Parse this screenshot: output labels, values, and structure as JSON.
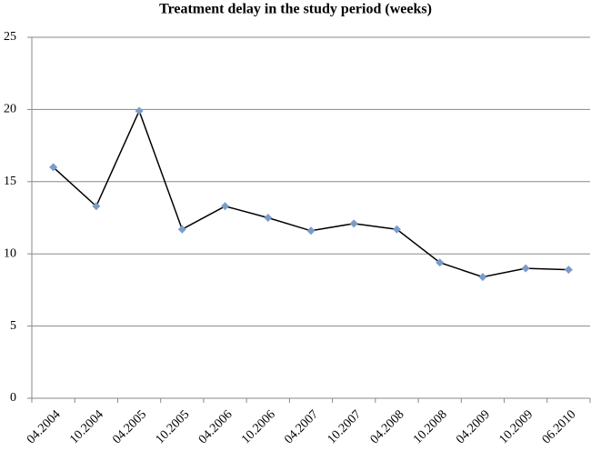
{
  "chart_data": {
    "type": "line",
    "title": "Treatment delay in the study period (weeks)",
    "categories": [
      "04.2004",
      "10.2004",
      "04.2005",
      "10.2005",
      "04.2006",
      "10.2006",
      "04.2007",
      "10.2007",
      "04.2008",
      "10.2008",
      "04.2009",
      "10.2009",
      "06.2010"
    ],
    "values": [
      16.0,
      13.3,
      19.9,
      11.7,
      13.3,
      12.5,
      11.6,
      12.1,
      11.7,
      9.4,
      8.4,
      9.0,
      8.9
    ],
    "color": "#000000",
    "marker_color": "#7b9cc9",
    "ylim": [
      0,
      25
    ],
    "yticks": [
      0,
      5,
      10,
      15,
      20,
      25
    ],
    "grid": true
  }
}
